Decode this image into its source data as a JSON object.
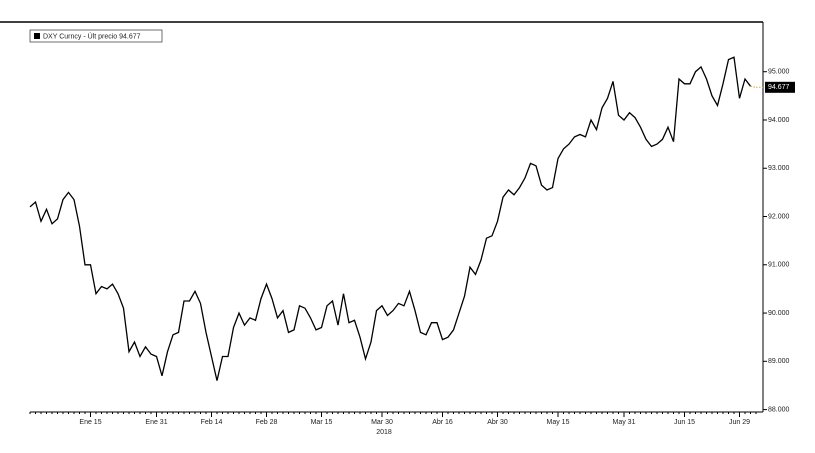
{
  "chart_data": {
    "type": "line",
    "legend": "DXY Curncy - Últ precio 94.677",
    "x_axis_year": "2018",
    "categories": [
      null,
      null,
      null,
      null,
      null,
      null,
      null,
      null,
      null,
      null,
      null,
      "Ene 15",
      null,
      null,
      null,
      null,
      null,
      null,
      null,
      null,
      null,
      null,
      null,
      "Ene 31",
      null,
      null,
      null,
      null,
      null,
      null,
      null,
      null,
      null,
      "Feb 14",
      null,
      null,
      null,
      null,
      null,
      null,
      null,
      null,
      null,
      "Feb 28",
      null,
      null,
      null,
      null,
      null,
      null,
      null,
      null,
      null,
      "Mar 15",
      null,
      null,
      null,
      null,
      null,
      null,
      null,
      null,
      null,
      null,
      "Mar 30",
      null,
      null,
      null,
      null,
      null,
      null,
      null,
      null,
      null,
      null,
      "Abr 16",
      null,
      null,
      null,
      null,
      null,
      null,
      null,
      null,
      null,
      "Abr 30",
      null,
      null,
      null,
      null,
      null,
      null,
      null,
      null,
      null,
      null,
      "May 15",
      null,
      null,
      null,
      null,
      null,
      null,
      null,
      null,
      null,
      null,
      null,
      "May 31",
      null,
      null,
      null,
      null,
      null,
      null,
      null,
      null,
      null,
      null,
      "Jun 15",
      null,
      null,
      null,
      null,
      null,
      null,
      null,
      null,
      null,
      "Jun 29",
      null,
      null,
      null
    ],
    "series": [
      {
        "name": "DXY Curncy",
        "color": "#000000",
        "last_color": "#e8a33c",
        "values": [
          92.2,
          92.3,
          91.9,
          92.15,
          91.85,
          91.95,
          92.35,
          92.5,
          92.35,
          91.8,
          91.0,
          91.0,
          90.4,
          90.55,
          90.5,
          90.6,
          90.4,
          90.1,
          89.2,
          89.4,
          89.1,
          89.3,
          89.15,
          89.1,
          88.7,
          89.2,
          89.55,
          89.6,
          90.25,
          90.25,
          90.45,
          90.2,
          89.6,
          89.1,
          88.6,
          89.1,
          89.1,
          89.7,
          90.0,
          89.75,
          89.9,
          89.85,
          90.3,
          90.6,
          90.3,
          89.9,
          90.05,
          89.6,
          89.65,
          90.15,
          90.1,
          89.9,
          89.65,
          89.7,
          90.15,
          90.25,
          89.75,
          90.4,
          89.8,
          89.85,
          89.5,
          89.05,
          89.4,
          90.05,
          90.15,
          89.95,
          90.05,
          90.2,
          90.15,
          90.45,
          90.05,
          89.6,
          89.55,
          89.8,
          89.8,
          89.45,
          89.5,
          89.65,
          90.0,
          90.35,
          90.95,
          90.8,
          91.1,
          91.55,
          91.6,
          91.9,
          92.4,
          92.55,
          92.45,
          92.6,
          92.8,
          93.1,
          93.05,
          92.65,
          92.55,
          92.6,
          93.2,
          93.4,
          93.5,
          93.65,
          93.7,
          93.65,
          94.0,
          93.8,
          94.25,
          94.45,
          94.8,
          94.1,
          94.0,
          94.15,
          94.05,
          93.85,
          93.6,
          93.45,
          93.5,
          93.6,
          93.85,
          93.55,
          94.85,
          94.75,
          94.75,
          95.0,
          95.1,
          94.85,
          94.5,
          94.3,
          94.75,
          95.25,
          95.3,
          94.45,
          94.85,
          94.7,
          94.677
        ]
      }
    ],
    "ylim": [
      87.95,
      96.03
    ],
    "yticks": [
      {
        "value": 88,
        "label": "88.000"
      },
      {
        "value": 89,
        "label": "89.000"
      },
      {
        "value": 90,
        "label": "90.000"
      },
      {
        "value": 91,
        "label": "91.000"
      },
      {
        "value": 92,
        "label": "92.000"
      },
      {
        "value": 93,
        "label": "93.000"
      },
      {
        "value": 94,
        "label": "94.000"
      },
      {
        "value": 95,
        "label": "95.000"
      }
    ],
    "grid": false
  }
}
